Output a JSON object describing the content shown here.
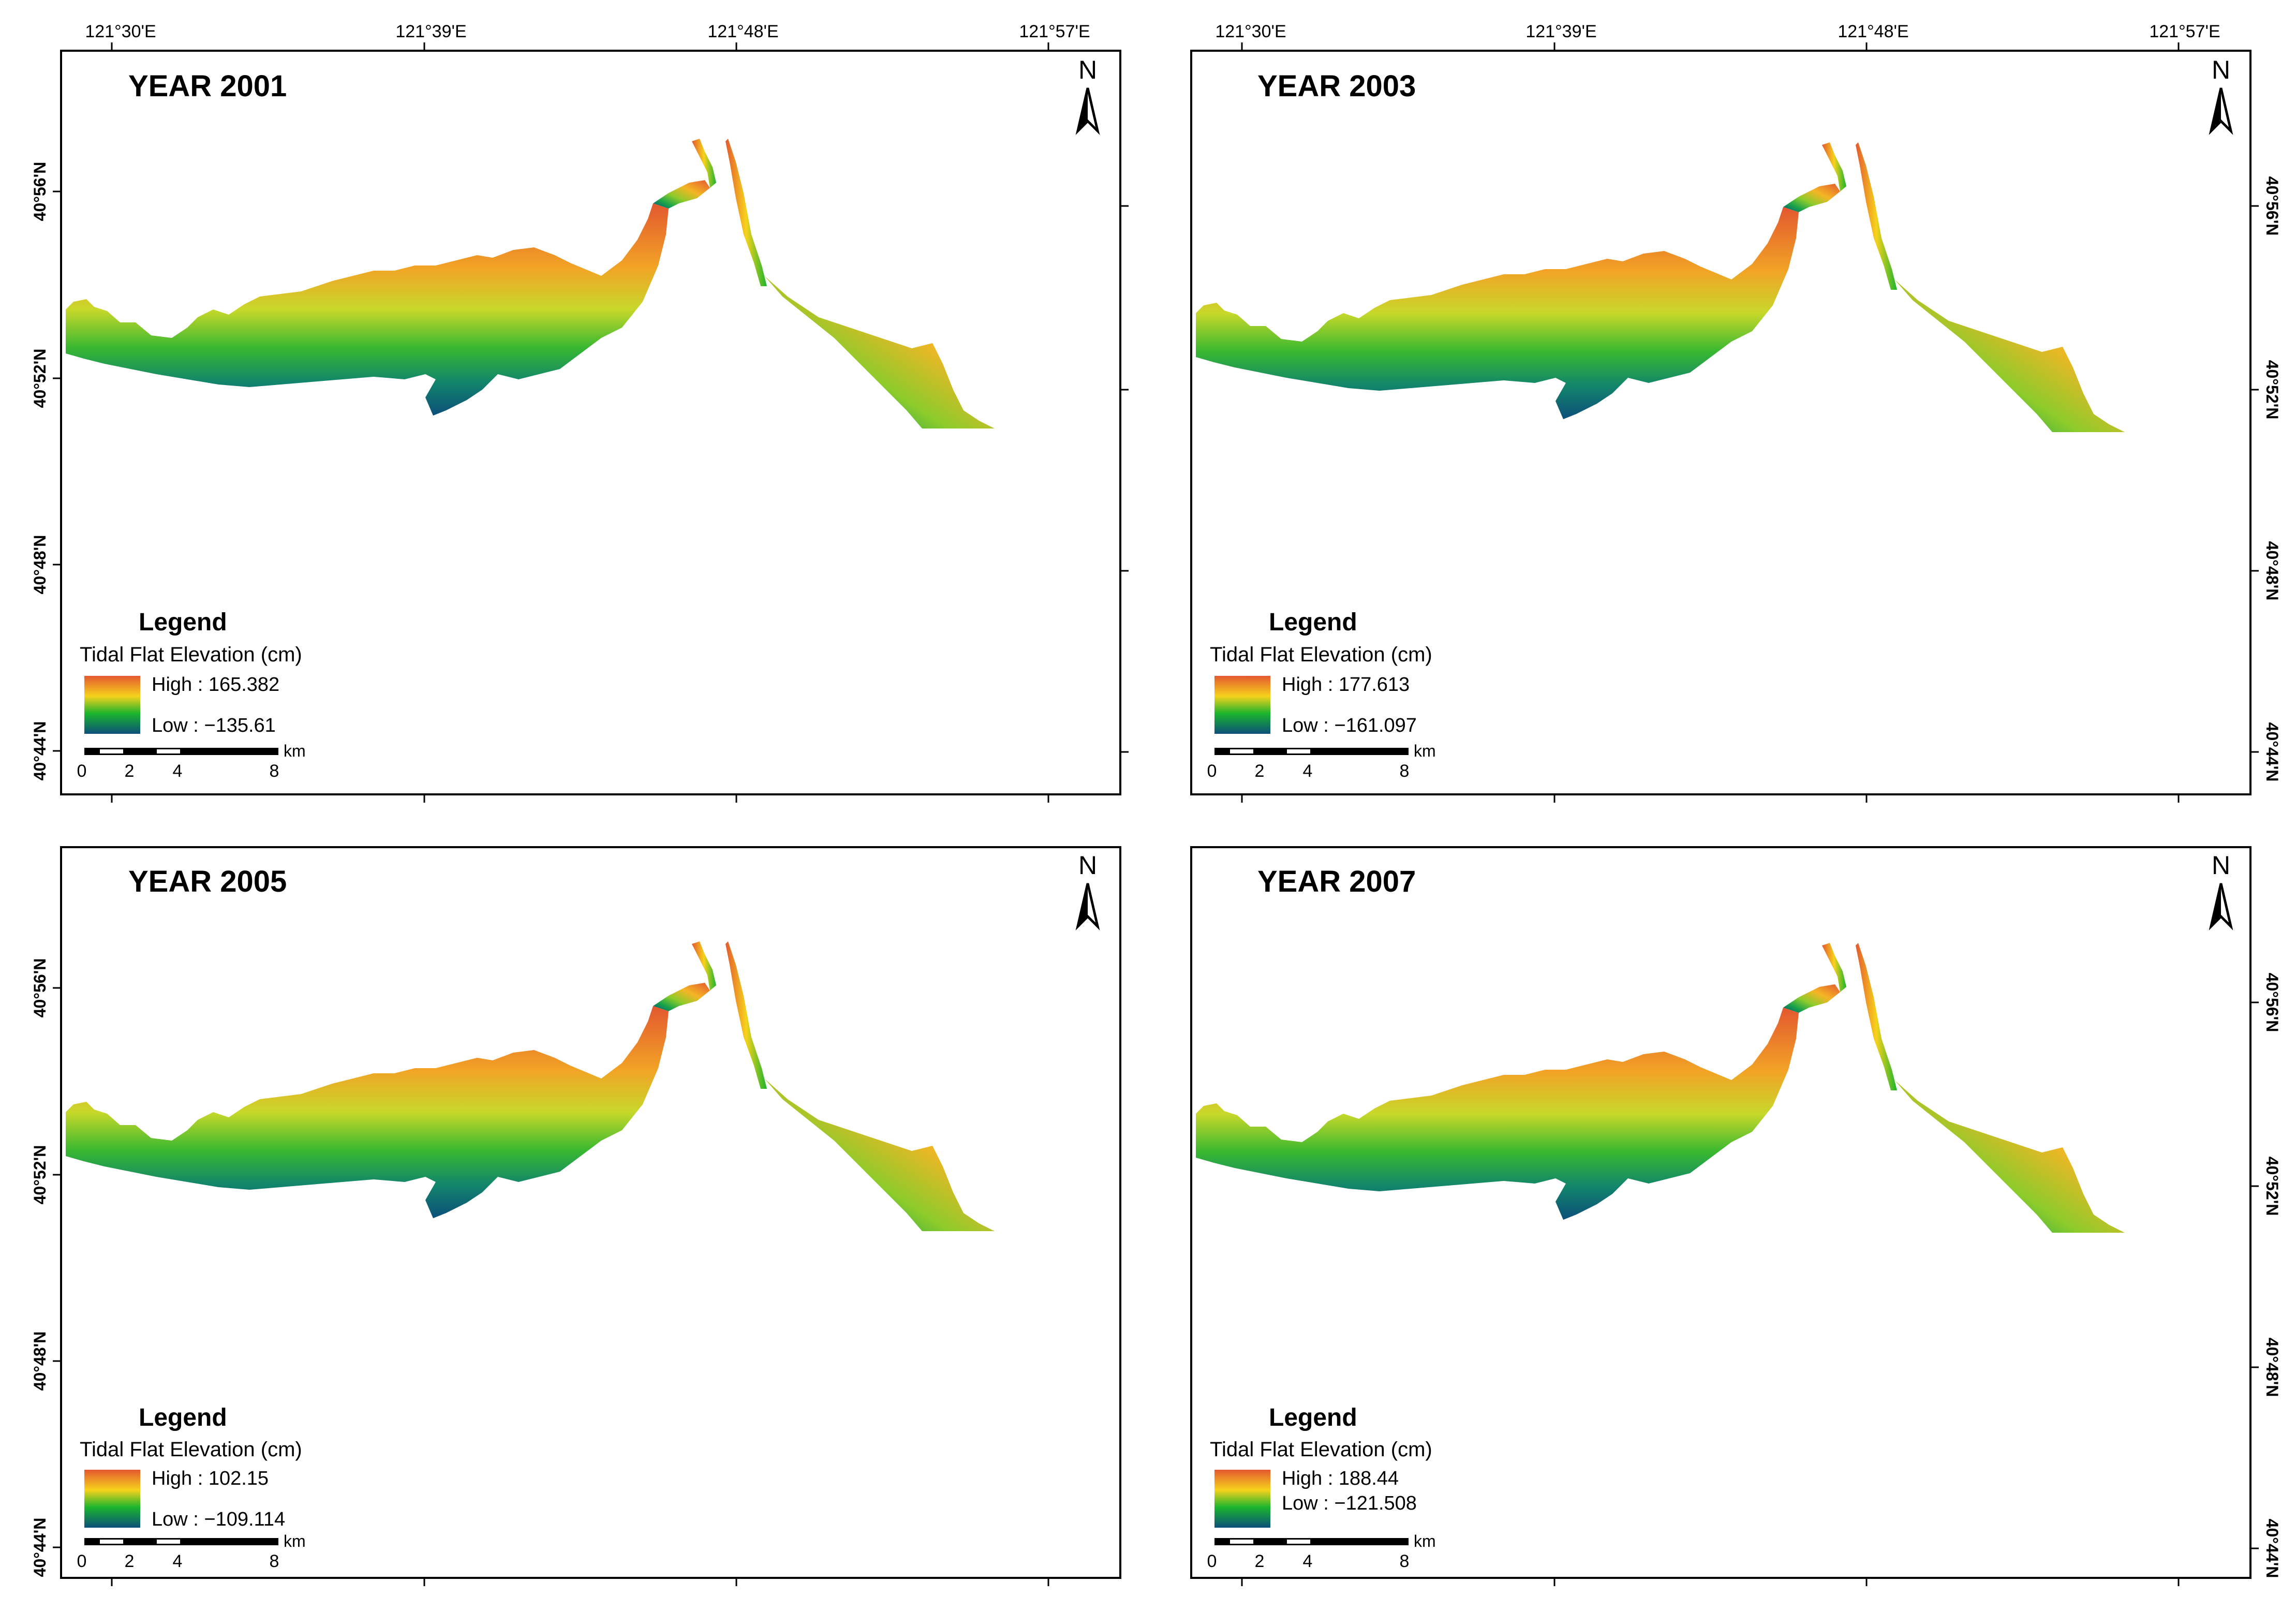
{
  "figure": {
    "x_ticks": [
      "121°30'E",
      "121°39'E",
      "121°48'E",
      "121°57'E"
    ],
    "y_ticks": [
      "40°56'N",
      "40°52'N",
      "40°48'N",
      "40°44'N"
    ],
    "north_label": "N",
    "scale_unit": "km",
    "scale_labels": [
      "0",
      "2",
      "4",
      "8"
    ],
    "legend_title": "Legend",
    "legend_subtitle": "Tidal Flat Elevation (cm)",
    "ramp_colors": [
      "#e3582f",
      "#f7d21c",
      "#1ab52c",
      "#0c4f7a"
    ]
  },
  "panels": [
    {
      "title": "YEAR 2001",
      "high": "High : 165.382",
      "low": "Low : −135.61"
    },
    {
      "title": "YEAR 2003",
      "high": "High : 177.613",
      "low": "Low : −161.097"
    },
    {
      "title": "YEAR 2005",
      "high": "High : 102.15",
      "low": "Low : −109.114"
    },
    {
      "title": "YEAR 2007",
      "high": "High : 188.44",
      "low": "Low : −121.508"
    }
  ]
}
